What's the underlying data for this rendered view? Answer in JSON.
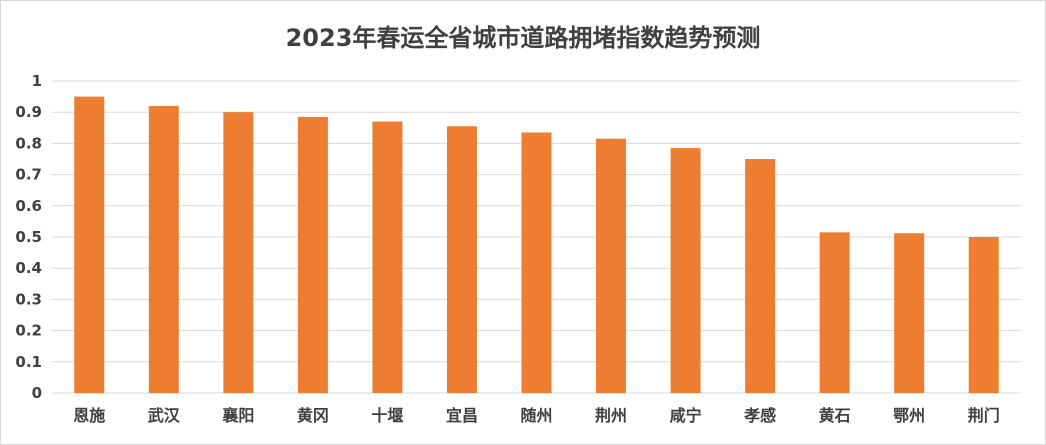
{
  "chart_data": {
    "type": "bar",
    "title": "2023年春运全省城市道路拥堵指数趋势预测",
    "xlabel": "",
    "ylabel": "",
    "categories": [
      "恩施",
      "武汉",
      "襄阳",
      "黄冈",
      "十堰",
      "宜昌",
      "随州",
      "荆州",
      "咸宁",
      "孝感",
      "黄石",
      "鄂州",
      "荆门"
    ],
    "values": [
      0.95,
      0.92,
      0.9,
      0.885,
      0.87,
      0.855,
      0.835,
      0.815,
      0.785,
      0.75,
      0.515,
      0.512,
      0.5
    ],
    "ylim": [
      0,
      1
    ],
    "yticks": [
      "0",
      "0.1",
      "0.2",
      "0.3",
      "0.4",
      "0.5",
      "0.6",
      "0.7",
      "0.8",
      "0.9",
      "1"
    ],
    "grid": true,
    "legend": "none",
    "bar_color": "#ED7D31",
    "grid_color": "#d9d9d9"
  }
}
